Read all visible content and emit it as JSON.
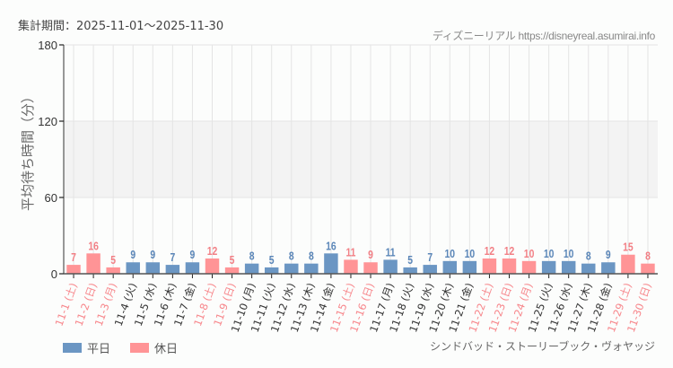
{
  "header": {
    "period": "集計期間：2025-11-01～2025-11-30",
    "credit": "ディズニーリアル https://disneyreal.asumirai.info"
  },
  "footer": {
    "attraction": "シンドバッド・ストーリーブック・ヴォヤッジ"
  },
  "legend": [
    {
      "label": "平日",
      "color": "#6b96c3"
    },
    {
      "label": "休日",
      "color": "#ff9496"
    }
  ],
  "colors": {
    "weekday": "#6b96c3",
    "holiday": "#ff9496",
    "weekday_label": "#5a86b8",
    "holiday_label": "#f27f85",
    "weekday_tick": "#333333",
    "holiday_tick": "#f7868b"
  },
  "chart_data": {
    "type": "bar",
    "title": "",
    "xlabel": "",
    "ylabel": "平均待ち時間（分）",
    "ylim": [
      0,
      180
    ],
    "yticks": [
      0,
      60,
      120,
      180
    ],
    "grid": true,
    "band": [
      60,
      120
    ],
    "legend_position": "bottom-left",
    "categories": [
      "11-1 (土)",
      "11-2 (日)",
      "11-3 (月)",
      "11-4 (火)",
      "11-5 (水)",
      "11-6 (木)",
      "11-7 (金)",
      "11-8 (土)",
      "11-9 (日)",
      "11-10 (月)",
      "11-11 (火)",
      "11-12 (水)",
      "11-13 (木)",
      "11-14 (金)",
      "11-15 (土)",
      "11-16 (日)",
      "11-17 (月)",
      "11-18 (火)",
      "11-19 (水)",
      "11-20 (木)",
      "11-21 (金)",
      "11-22 (土)",
      "11-23 (日)",
      "11-24 (月)",
      "11-25 (火)",
      "11-26 (水)",
      "11-27 (木)",
      "11-28 (金)",
      "11-29 (土)",
      "11-30 (日)"
    ],
    "values": [
      7,
      16,
      5,
      9,
      9,
      7,
      9,
      12,
      5,
      8,
      5,
      8,
      8,
      16,
      11,
      9,
      11,
      5,
      7,
      10,
      10,
      12,
      12,
      10,
      10,
      10,
      8,
      9,
      15,
      8
    ],
    "day_type": [
      "休日",
      "休日",
      "休日",
      "平日",
      "平日",
      "平日",
      "平日",
      "休日",
      "休日",
      "平日",
      "平日",
      "平日",
      "平日",
      "平日",
      "休日",
      "休日",
      "平日",
      "平日",
      "平日",
      "平日",
      "平日",
      "休日",
      "休日",
      "休日",
      "平日",
      "平日",
      "平日",
      "平日",
      "休日",
      "休日"
    ],
    "series": [
      {
        "name": "平日",
        "values": [
          null,
          null,
          null,
          9,
          9,
          7,
          9,
          null,
          null,
          8,
          5,
          8,
          8,
          16,
          null,
          null,
          11,
          5,
          7,
          10,
          10,
          null,
          null,
          null,
          10,
          10,
          8,
          9,
          null,
          null
        ]
      },
      {
        "name": "休日",
        "values": [
          7,
          16,
          5,
          null,
          null,
          null,
          null,
          12,
          5,
          null,
          null,
          null,
          null,
          null,
          11,
          9,
          null,
          null,
          null,
          null,
          null,
          12,
          12,
          10,
          null,
          null,
          null,
          null,
          15,
          8
        ]
      }
    ]
  }
}
